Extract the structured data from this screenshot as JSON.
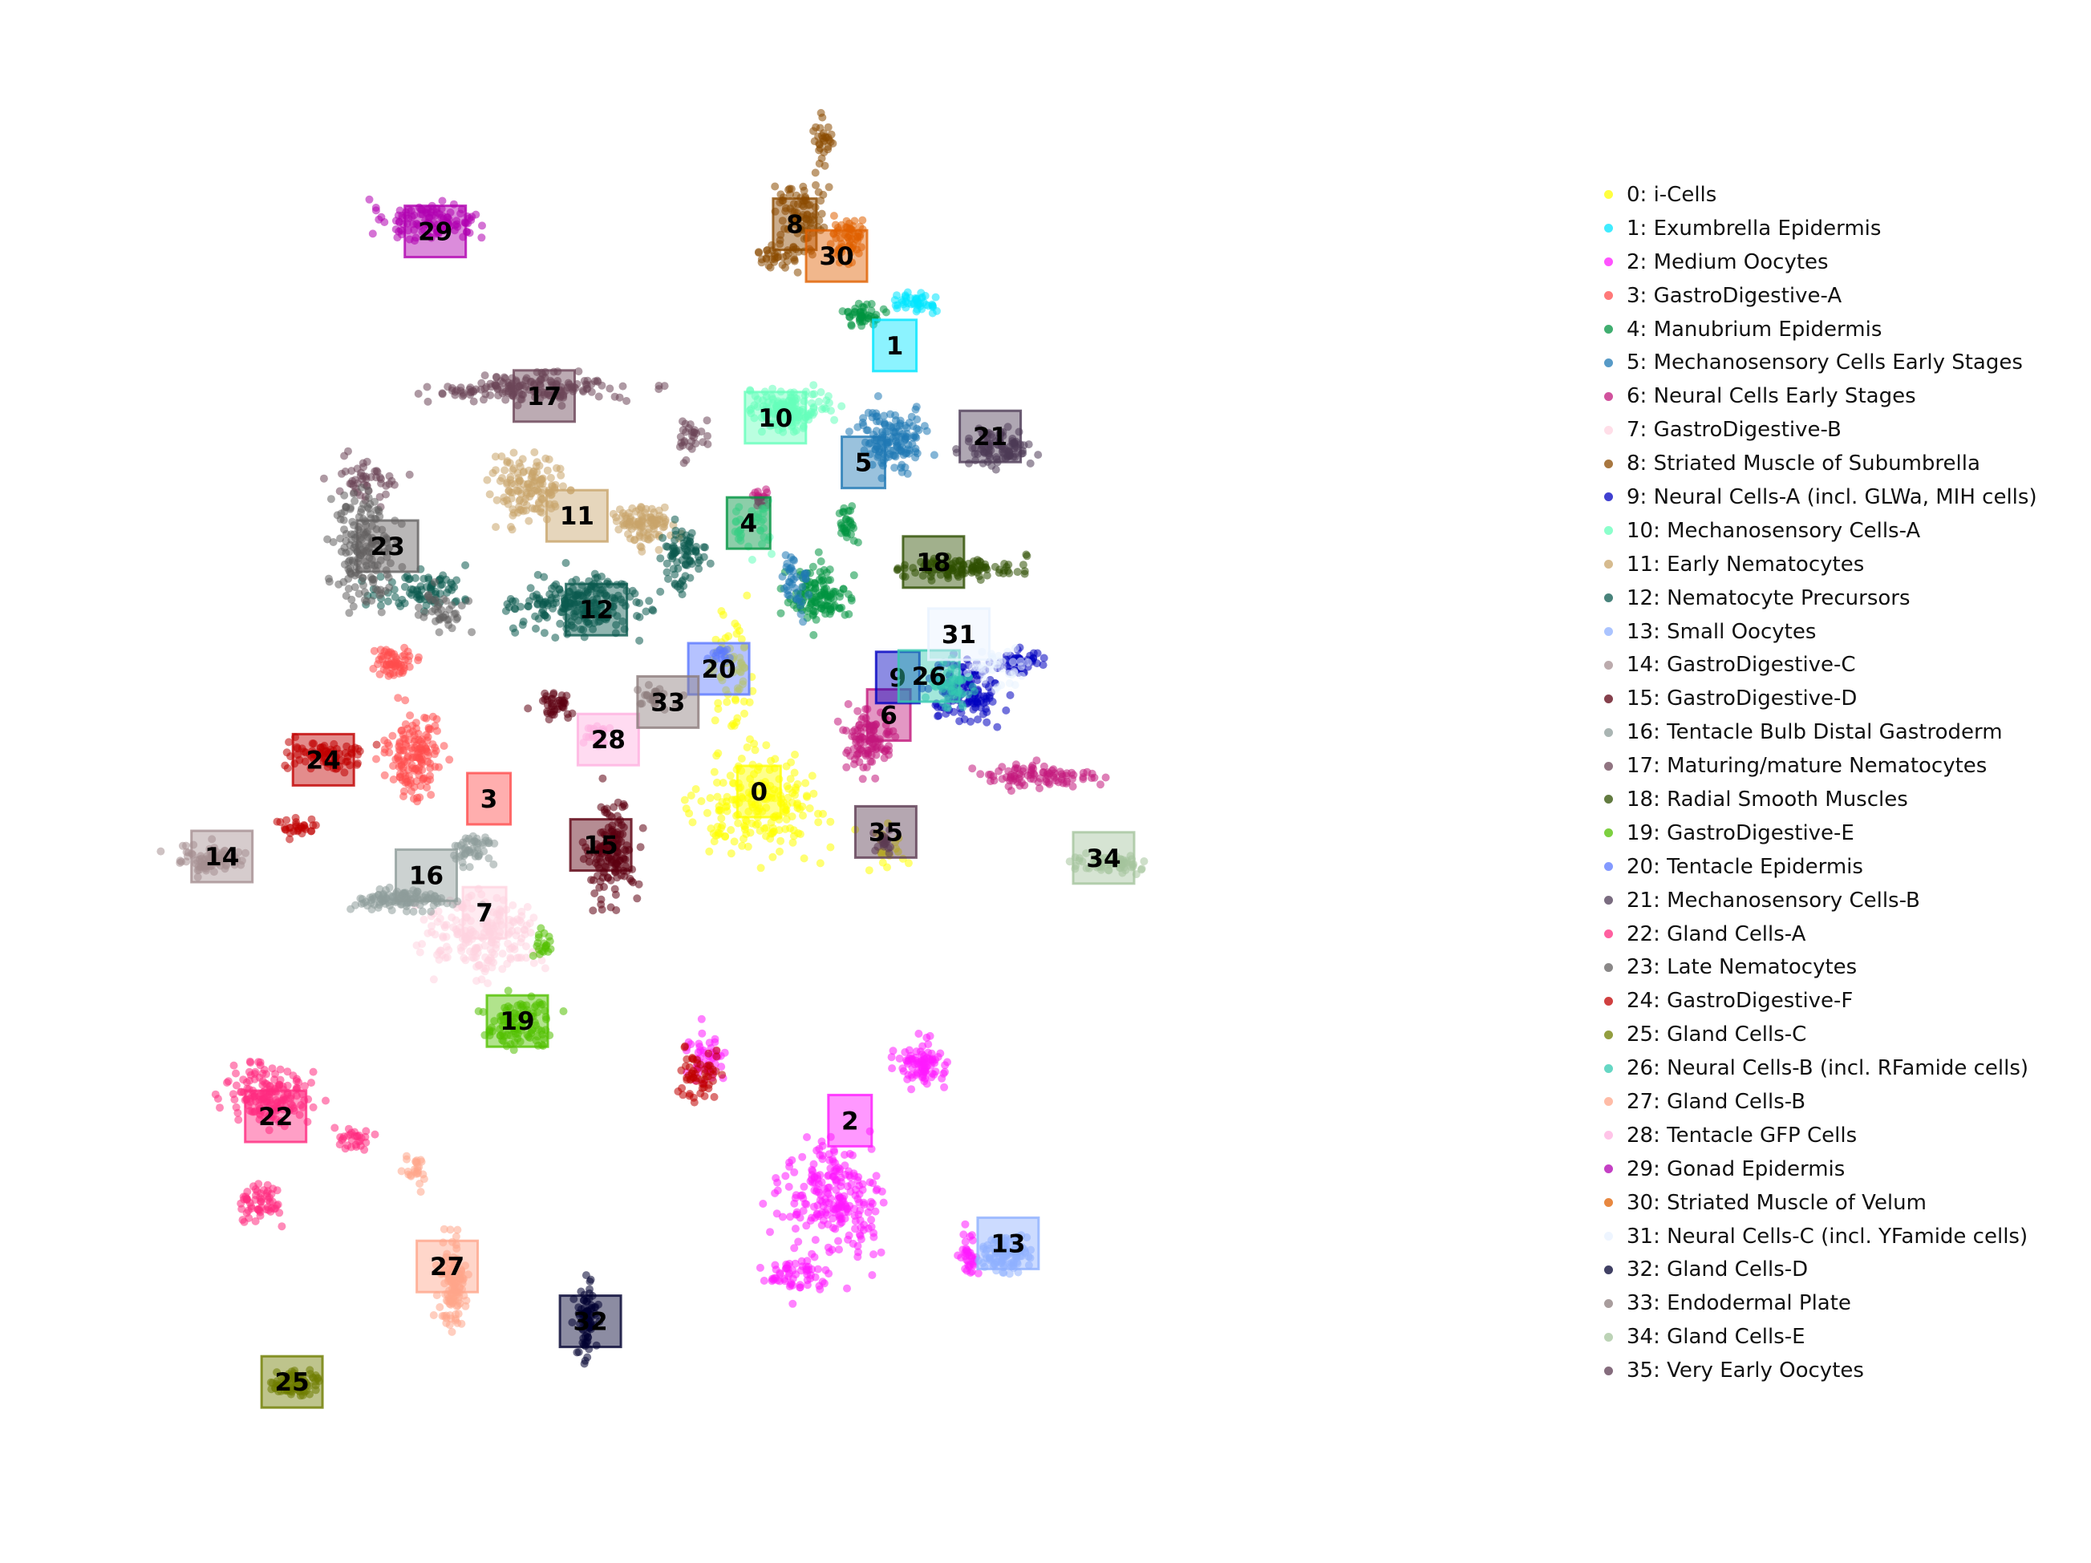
{
  "chart_data": {
    "type": "scatter",
    "title": "",
    "xlabel": "",
    "ylabel": "",
    "axes_visible": false,
    "grid": false,
    "legend_position": "right",
    "xlim": [
      0,
      100
    ],
    "ylim": [
      0,
      100
    ],
    "clusters": [
      {
        "id": "0",
        "name": "i-Cells",
        "color": "#ffff00",
        "label_pos": [
          45.5,
          48.5
        ],
        "shapes": [
          [
            45.5,
            47.5,
            7.8,
            5.6,
            200
          ],
          [
            43.5,
            57.0,
            2.5,
            7.0,
            70
          ],
          [
            54.0,
            44.5,
            2.0,
            2.5,
            20
          ]
        ]
      },
      {
        "id": "1",
        "name": "Exumbrella Epidermis",
        "color": "#00e5ff",
        "label_pos": [
          54.6,
          79.4
        ],
        "shapes": [
          [
            56.0,
            82.4,
            2.4,
            1.0,
            45
          ]
        ]
      },
      {
        "id": "2",
        "name": "Medium Oocytes",
        "color": "#ff1aff",
        "label_pos": [
          51.6,
          25.7
        ],
        "shapes": [
          [
            50.5,
            20.5,
            5.8,
            5.8,
            230
          ],
          [
            56.5,
            29.5,
            2.6,
            2.6,
            90
          ],
          [
            48.0,
            15.0,
            3.6,
            2.2,
            60
          ],
          [
            59.5,
            16.5,
            1.0,
            3.2,
            35
          ],
          [
            42.0,
            30.0,
            2.0,
            3.0,
            50
          ]
        ]
      },
      {
        "id": "3",
        "name": "GastroDigestive-A",
        "color": "#ff4c4c",
        "label_pos": [
          27.4,
          48.0
        ],
        "shapes": [
          [
            22.5,
            51.0,
            3.4,
            5.0,
            150
          ],
          [
            21.0,
            57.5,
            2.5,
            2.0,
            60
          ]
        ]
      },
      {
        "id": "4",
        "name": "Manubrium Epidermis",
        "color": "#009340",
        "label_pos": [
          44.8,
          67.1
        ],
        "shapes": [
          [
            49.5,
            62.0,
            3.2,
            3.2,
            120
          ],
          [
            51.5,
            67.0,
            1.0,
            2.0,
            30
          ],
          [
            52.5,
            81.5,
            2.0,
            1.2,
            45
          ]
        ]
      },
      {
        "id": "5",
        "name": "Mechanosensory Cells Early Stages",
        "color": "#1f78b4",
        "label_pos": [
          52.5,
          71.3
        ],
        "shapes": [
          [
            54.5,
            73.0,
            4.0,
            3.4,
            140
          ],
          [
            48.0,
            63.0,
            2.0,
            3.5,
            40
          ]
        ]
      },
      {
        "id": "6",
        "name": "Neural Cells Early Stages",
        "color": "#c2187c",
        "label_pos": [
          54.2,
          53.8
        ],
        "shapes": [
          [
            53.0,
            52.0,
            2.6,
            3.4,
            110
          ],
          [
            64.5,
            49.5,
            6.5,
            1.4,
            90
          ],
          [
            45.5,
            69.0,
            0.8,
            1.6,
            20
          ]
        ]
      },
      {
        "id": "7",
        "name": "GastroDigestive-B",
        "color": "#ffd3e0",
        "label_pos": [
          27.1,
          40.1
        ],
        "shapes": [
          [
            27.0,
            38.5,
            6.5,
            4.6,
            200
          ]
        ]
      },
      {
        "id": "8",
        "name": "Striated Muscle of Subumbrella",
        "color": "#8b4a00",
        "label_pos": [
          47.9,
          87.8
        ],
        "shapes": [
          [
            48.5,
            88.5,
            2.5,
            4.0,
            80
          ],
          [
            47.0,
            85.5,
            2.6,
            1.6,
            40
          ],
          [
            49.8,
            93.5,
            1.2,
            2.5,
            30
          ]
        ]
      },
      {
        "id": "9",
        "name": "Neural Cells-A (incl. GLWa, MIH cells)",
        "color": "#0000c0",
        "label_pos": [
          54.8,
          56.4
        ],
        "shapes": [
          [
            59.5,
            55.5,
            3.8,
            3.5,
            130
          ],
          [
            63.0,
            57.5,
            2.6,
            1.6,
            45
          ]
        ]
      },
      {
        "id": "10",
        "name": "Mechanosensory Cells-A",
        "color": "#66ffbb",
        "label_pos": [
          46.6,
          74.4
        ],
        "shapes": [
          [
            47.5,
            75.0,
            4.6,
            2.6,
            150
          ],
          [
            45.5,
            67.0,
            2.6,
            3.0,
            40
          ]
        ]
      },
      {
        "id": "11",
        "name": "Early Nematocytes",
        "color": "#c8a46a",
        "label_pos": [
          33.3,
          67.6
        ],
        "shapes": [
          [
            30.0,
            69.5,
            3.8,
            4.0,
            140
          ],
          [
            37.8,
            67.0,
            3.3,
            2.5,
            100
          ]
        ]
      },
      {
        "id": "12",
        "name": "Nematocyte Precursors",
        "color": "#0b5a4f",
        "label_pos": [
          34.6,
          61.1
        ],
        "shapes": [
          [
            33.5,
            61.5,
            6.8,
            3.5,
            220
          ],
          [
            40.5,
            64.5,
            2.5,
            3.5,
            80
          ],
          [
            23.0,
            62.5,
            5.0,
            2.2,
            80
          ]
        ]
      },
      {
        "id": "13",
        "name": "Small Oocytes",
        "color": "#8fb0ff",
        "label_pos": [
          62.2,
          17.2
        ],
        "shapes": [
          [
            62.0,
            16.5,
            2.6,
            2.2,
            110
          ]
        ]
      },
      {
        "id": "14",
        "name": "GastroDigestive-C",
        "color": "#a58f91",
        "label_pos": [
          9.5,
          44.0
        ],
        "shapes": [
          [
            9.0,
            43.8,
            3.8,
            1.8,
            90
          ]
        ]
      },
      {
        "id": "15",
        "name": "GastroDigestive-D",
        "color": "#5c0010",
        "label_pos": [
          34.9,
          44.8
        ],
        "shapes": [
          [
            35.5,
            44.5,
            2.6,
            5.2,
            150
          ],
          [
            32.0,
            54.5,
            2.2,
            1.5,
            40
          ]
        ]
      },
      {
        "id": "16",
        "name": "Tentacle Bulb Distal Gastroderm",
        "color": "#8e9c9a",
        "label_pos": [
          23.2,
          42.7
        ],
        "shapes": [
          [
            21.5,
            41.0,
            6.0,
            1.2,
            110
          ],
          [
            26.5,
            44.5,
            2.4,
            2.0,
            50
          ]
        ]
      },
      {
        "id": "17",
        "name": "Maturing/mature Nematocytes",
        "color": "#6b4557",
        "label_pos": [
          31.1,
          75.9
        ],
        "shapes": [
          [
            30.0,
            76.5,
            11.5,
            1.6,
            170
          ],
          [
            19.0,
            70.0,
            3.2,
            2.8,
            50
          ],
          [
            41.0,
            73.0,
            2.0,
            2.2,
            30
          ]
        ]
      },
      {
        "id": "18",
        "name": "Radial Smooth Muscles",
        "color": "#2e4f00",
        "label_pos": [
          57.2,
          64.4
        ],
        "shapes": [
          [
            59.0,
            64.0,
            6.8,
            1.2,
            110
          ]
        ]
      },
      {
        "id": "19",
        "name": "GastroDigestive-E",
        "color": "#52c000",
        "label_pos": [
          29.3,
          32.6
        ],
        "shapes": [
          [
            29.5,
            32.5,
            3.4,
            3.2,
            110
          ],
          [
            31.0,
            38.0,
            1.0,
            2.5,
            20
          ]
        ]
      },
      {
        "id": "20",
        "name": "Tentacle Epidermis",
        "color": "#5b78ff",
        "label_pos": [
          42.8,
          57.0
        ],
        "shapes": [
          [
            43.0,
            58.0,
            1.2,
            1.0,
            15
          ]
        ]
      },
      {
        "id": "21",
        "name": "Mechanosensory Cells-B",
        "color": "#4d3b56",
        "label_pos": [
          61.0,
          73.1
        ],
        "shapes": [
          [
            61.5,
            72.5,
            3.6,
            2.0,
            100
          ]
        ]
      },
      {
        "id": "22",
        "name": "Gland Cells-A",
        "color": "#ff2b80",
        "label_pos": [
          13.1,
          26.0
        ],
        "shapes": [
          [
            12.5,
            27.5,
            4.8,
            3.4,
            160
          ],
          [
            12.0,
            20.0,
            2.5,
            2.5,
            60
          ],
          [
            18.5,
            24.5,
            2.2,
            1.2,
            30
          ]
        ]
      },
      {
        "id": "23",
        "name": "Late Nematocytes",
        "color": "#636060",
        "label_pos": [
          20.6,
          65.5
        ],
        "shapes": [
          [
            19.0,
            65.5,
            3.6,
            6.0,
            170
          ],
          [
            24.0,
            61.0,
            3.0,
            2.5,
            40
          ]
        ]
      },
      {
        "id": "24",
        "name": "GastroDigestive-F",
        "color": "#c00000",
        "label_pos": [
          16.3,
          50.7
        ],
        "shapes": [
          [
            16.5,
            51.0,
            4.2,
            1.7,
            80
          ],
          [
            14.5,
            46.0,
            1.8,
            1.0,
            30
          ],
          [
            41.5,
            29.0,
            2.5,
            3.0,
            60
          ]
        ]
      },
      {
        "id": "25",
        "name": "Gland Cells-C",
        "color": "#6f7d00",
        "label_pos": [
          14.2,
          7.6
        ],
        "shapes": [
          [
            14.5,
            7.5,
            2.8,
            1.5,
            90
          ]
        ]
      },
      {
        "id": "26",
        "name": "Neural Cells-B (incl. RFamide cells)",
        "color": "#33c9b0",
        "label_pos": [
          56.9,
          56.5
        ],
        "shapes": [
          [
            58.5,
            56.0,
            3.0,
            3.0,
            50
          ]
        ]
      },
      {
        "id": "27",
        "name": "Gland Cells-B",
        "color": "#ffa58a",
        "label_pos": [
          24.6,
          15.6
        ],
        "shapes": [
          [
            25.0,
            14.5,
            1.6,
            4.8,
            120
          ],
          [
            22.5,
            22.0,
            1.8,
            2.0,
            25
          ]
        ]
      },
      {
        "id": "28",
        "name": "Tentacle GFP Cells",
        "color": "#ffb0e0",
        "label_pos": [
          35.4,
          52.1
        ],
        "shapes": [
          [
            34.5,
            52.5,
            1.8,
            1.5,
            25
          ]
        ]
      },
      {
        "id": "29",
        "name": "Gonad Epidermis",
        "color": "#b000b0",
        "label_pos": [
          23.8,
          87.3
        ],
        "shapes": [
          [
            23.5,
            88.0,
            5.5,
            2.0,
            120
          ]
        ]
      },
      {
        "id": "30",
        "name": "Striated Muscle of Velum",
        "color": "#e06000",
        "label_pos": [
          50.7,
          85.6
        ],
        "shapes": [
          [
            51.5,
            87.0,
            2.0,
            2.8,
            60
          ]
        ]
      },
      {
        "id": "31",
        "name": "Neural Cells-C (incl. YFamide cells)",
        "color": "#e8f2ff",
        "label_pos": [
          58.9,
          59.4
        ],
        "shapes": [
          [
            61.5,
            57.0,
            4.0,
            2.0,
            40
          ]
        ]
      },
      {
        "id": "32",
        "name": "Gland Cells-D",
        "color": "#000030",
        "label_pos": [
          34.2,
          11.8
        ],
        "shapes": [
          [
            34.0,
            12.0,
            1.4,
            4.6,
            80
          ]
        ]
      },
      {
        "id": "33",
        "name": "Endodermal Plate",
        "color": "#8c7c7c",
        "label_pos": [
          39.4,
          54.7
        ],
        "shapes": [
          [
            38.5,
            55.0,
            2.4,
            1.3,
            30
          ]
        ]
      },
      {
        "id": "34",
        "name": "Gland Cells-E",
        "color": "#a5c49d",
        "label_pos": [
          68.6,
          43.9
        ],
        "shapes": [
          [
            69.0,
            43.5,
            4.0,
            1.0,
            60
          ]
        ]
      },
      {
        "id": "35",
        "name": "Very Early Oocytes",
        "color": "#5c3b52",
        "label_pos": [
          54.0,
          45.7
        ],
        "shapes": [
          [
            53.8,
            45.0,
            1.1,
            1.2,
            20
          ]
        ]
      }
    ]
  }
}
